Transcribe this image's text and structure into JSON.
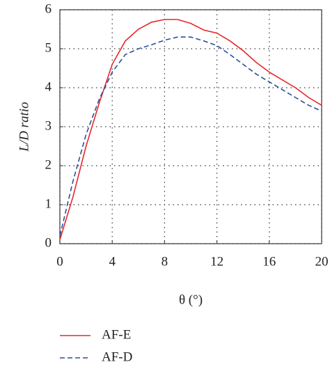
{
  "chart_data": {
    "type": "line",
    "x_label": "θ (°)",
    "y_label": "L/D ratio",
    "x": [
      0,
      1,
      2,
      3,
      4,
      5,
      6,
      7,
      8,
      9,
      10,
      11,
      12,
      13,
      14,
      15,
      16,
      17,
      18,
      19,
      20
    ],
    "series": [
      {
        "name": "AF-E",
        "color": "#e8262a",
        "dash": false,
        "values": [
          0.1,
          1.2,
          2.5,
          3.6,
          4.6,
          5.2,
          5.5,
          5.68,
          5.75,
          5.75,
          5.65,
          5.48,
          5.4,
          5.2,
          4.95,
          4.65,
          4.4,
          4.2,
          4.0,
          3.75,
          3.55
        ]
      },
      {
        "name": "AF-D",
        "color": "#2b4f9a",
        "dash": true,
        "values": [
          0.2,
          1.6,
          2.8,
          3.7,
          4.4,
          4.85,
          5.0,
          5.1,
          5.22,
          5.3,
          5.3,
          5.2,
          5.08,
          4.85,
          4.6,
          4.35,
          4.15,
          3.95,
          3.75,
          3.55,
          3.4
        ]
      }
    ],
    "xlim": [
      0,
      20
    ],
    "ylim": [
      0,
      6
    ],
    "xticks": [
      0,
      4,
      8,
      12,
      16,
      20
    ],
    "yticks": [
      0,
      1,
      2,
      3,
      4,
      5,
      6
    ],
    "grid": true
  }
}
